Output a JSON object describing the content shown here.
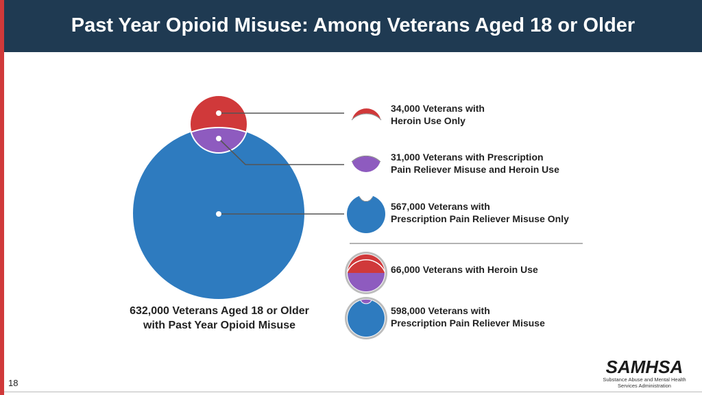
{
  "slide": {
    "title": "Past Year Opioid Misuse: Among Veterans Aged 18 or Older",
    "page_number": "18"
  },
  "colors": {
    "heroin": "#d0393a",
    "both": "#8e5bbf",
    "prescription": "#2e7bbf",
    "title_bar": "#1f3a52"
  },
  "total": {
    "line1": "632,000 Veterans Aged 18 or Older",
    "line2": "with Past Year Opioid Misuse"
  },
  "legend": [
    {
      "line1": "34,000 Veterans with",
      "line2": "Heroin Use Only"
    },
    {
      "line1": "31,000 Veterans with Prescription",
      "line2": "Pain Reliever Misuse and Heroin Use"
    },
    {
      "line1": "567,000 Veterans with",
      "line2": "Prescription Pain Reliever Misuse Only"
    },
    {
      "line1": "66,000 Veterans with Heroin Use",
      "line2": ""
    },
    {
      "line1": "598,000 Veterans with",
      "line2": "Prescription Pain Reliever Misuse"
    }
  ],
  "chart_data": {
    "type": "venn",
    "total": 632000,
    "sets": [
      {
        "name": "Heroin Use",
        "value": 66000
      },
      {
        "name": "Prescription Pain Reliever Misuse",
        "value": 598000
      }
    ],
    "regions": [
      {
        "name": "Heroin Use Only",
        "value": 34000
      },
      {
        "name": "Prescription Pain Reliever Misuse and Heroin Use",
        "value": 31000
      },
      {
        "name": "Prescription Pain Reliever Misuse Only",
        "value": 567000
      }
    ]
  },
  "logo": {
    "wordmark": "SAMHSA",
    "subtitle_line1": "Substance Abuse and Mental Health",
    "subtitle_line2": "Services Administration"
  }
}
